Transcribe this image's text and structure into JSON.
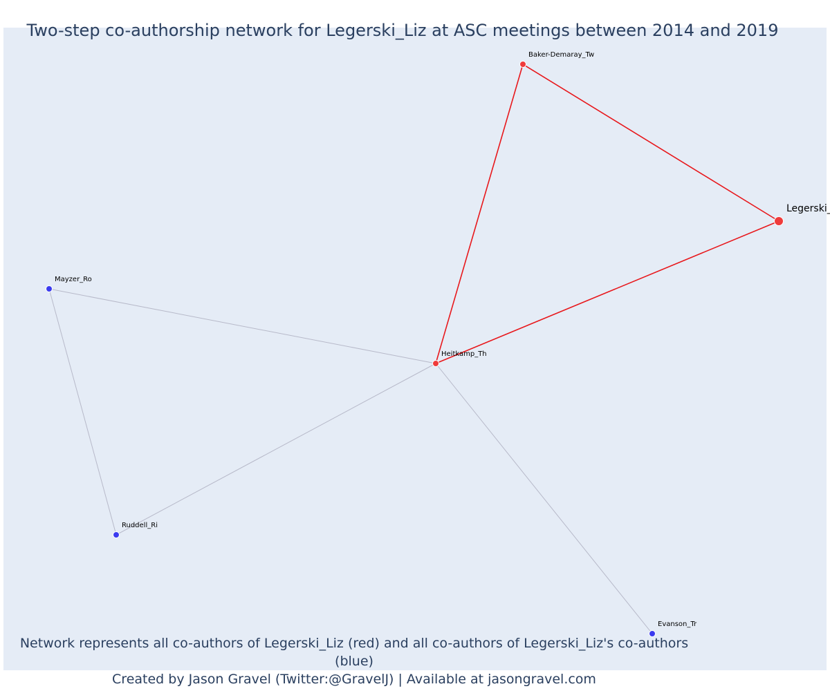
{
  "title": "Two-step co-authorship network for Legerski_Liz at ASC meetings between 2014 and 2019",
  "caption": {
    "line1": "Network represents all co-authors of Legerski_Liz (red) and all co-authors of Legerski_Liz's co-authors (blue)",
    "line2": "Created by Jason Gravel (Twitter:@GravelJ) | Available at jasongravel.com"
  },
  "colors": {
    "background": "#e5ecf6",
    "focal": "#ef3b3b",
    "coauthor": "#ef3b3b",
    "second_step": "#3b3bef",
    "edge_focal": "#e8171b",
    "edge_other": "#b7b9c9"
  },
  "network": {
    "nodes": [
      {
        "id": "Legerski_Liz",
        "label": "Legerski_Liz",
        "group": "focal"
      },
      {
        "id": "Baker-Demaray_Tw",
        "label": "Baker-Demaray_Tw",
        "group": "coauthor"
      },
      {
        "id": "Heitkamp_Th",
        "label": "Heitkamp_Th",
        "group": "coauthor"
      },
      {
        "id": "Mayzer_Ro",
        "label": "Mayzer_Ro",
        "group": "second_step"
      },
      {
        "id": "Ruddell_Ri",
        "label": "Ruddell_Ri",
        "group": "second_step"
      },
      {
        "id": "Evanson_Tr",
        "label": "Evanson_Tr",
        "group": "second_step"
      }
    ],
    "edges": [
      {
        "source": "Baker-Demaray_Tw",
        "target": "Legerski_Liz",
        "type": "focal"
      },
      {
        "source": "Heitkamp_Th",
        "target": "Legerski_Liz",
        "type": "focal"
      },
      {
        "source": "Baker-Demaray_Tw",
        "target": "Heitkamp_Th",
        "type": "focal"
      },
      {
        "source": "Mayzer_Ro",
        "target": "Heitkamp_Th",
        "type": "other"
      },
      {
        "source": "Ruddell_Ri",
        "target": "Heitkamp_Th",
        "type": "other"
      },
      {
        "source": "Mayzer_Ro",
        "target": "Ruddell_Ri",
        "type": "other"
      },
      {
        "source": "Evanson_Tr",
        "target": "Heitkamp_Th",
        "type": "other"
      }
    ]
  }
}
